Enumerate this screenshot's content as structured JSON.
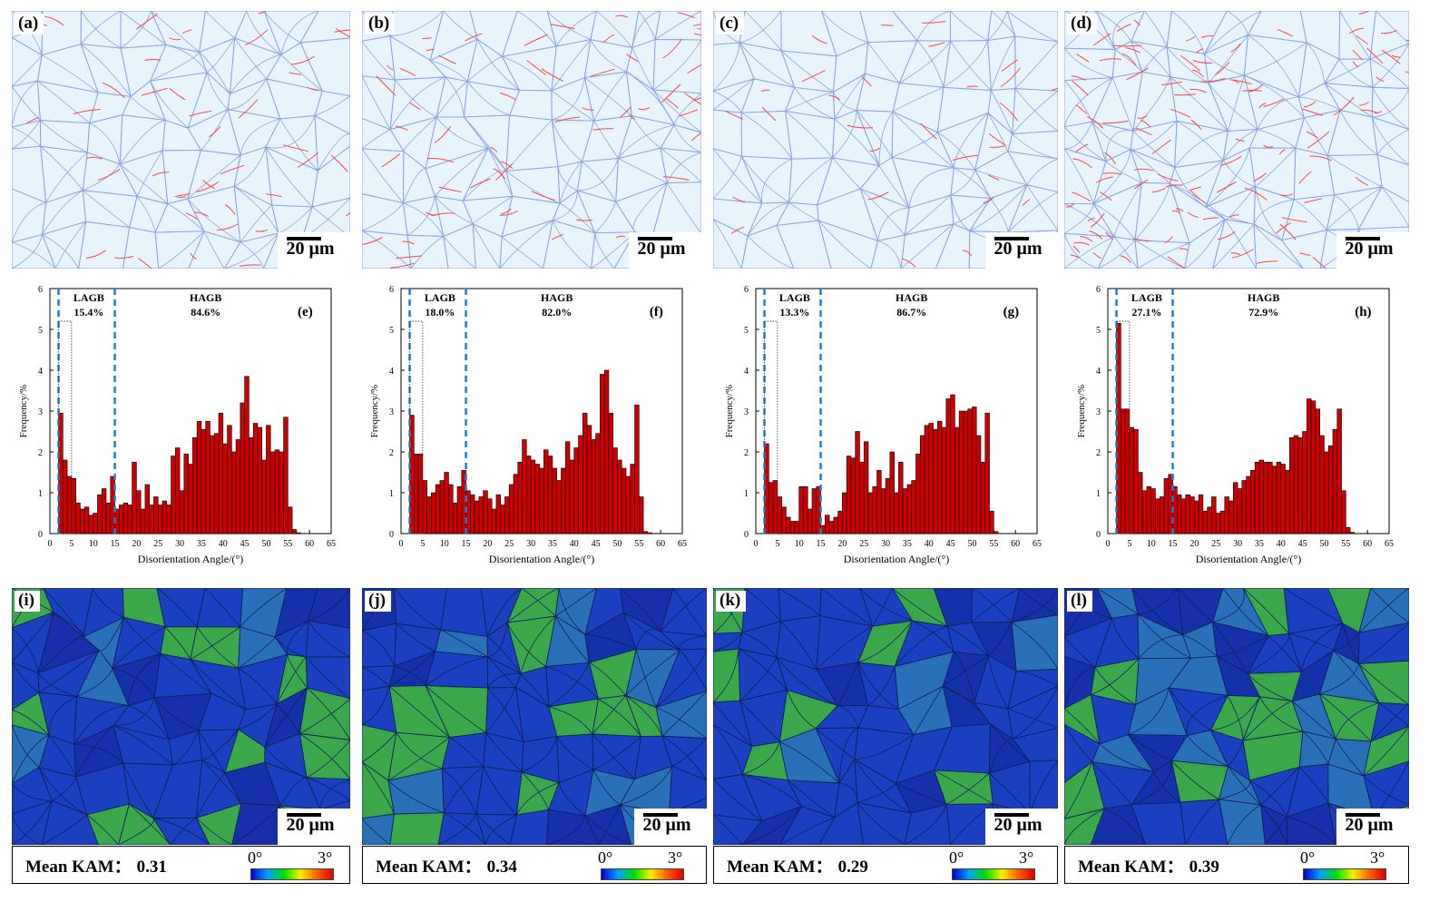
{
  "figure": {
    "scale_label": "20 μm",
    "gb_panels": [
      {
        "label": "(a)"
      },
      {
        "label": "(b)"
      },
      {
        "label": "(c)"
      },
      {
        "label": "(d)"
      }
    ],
    "kam_panels": [
      {
        "label": "(i)",
        "mean_kam_label": "Mean KAM：",
        "mean_kam": "0.31",
        "cbar_min": "0°",
        "cbar_max": "3°"
      },
      {
        "label": "(j)",
        "mean_kam_label": "Mean KAM：",
        "mean_kam": "0.34",
        "cbar_min": "0°",
        "cbar_max": "3°"
      },
      {
        "label": "(k)",
        "mean_kam_label": "Mean KAM：",
        "mean_kam": "0.29",
        "cbar_min": "0°",
        "cbar_max": "3°"
      },
      {
        "label": "(l)",
        "mean_kam_label": "Mean KAM：",
        "mean_kam": "0.39",
        "cbar_min": "0°",
        "cbar_max": "3°"
      }
    ],
    "colors": {
      "bar": "#cc0000",
      "boundary_line": "#1a7fd0",
      "hagb": "#8aa0e8",
      "lagb": "#ff4040"
    }
  },
  "chart_data": [
    {
      "type": "bar",
      "panel_label": "(e)",
      "xlabel": "Disorientation Angle/(°)",
      "ylabel": "Frequency/%",
      "xlim": [
        0,
        65
      ],
      "ylim": [
        0,
        6
      ],
      "x_ticks": [
        0,
        5,
        10,
        15,
        20,
        25,
        30,
        35,
        40,
        45,
        50,
        55,
        60,
        65
      ],
      "y_ticks": [
        0,
        1,
        2,
        3,
        4,
        5,
        6
      ],
      "lagb_label": "LAGB",
      "lagb_pct": "15.4%",
      "hagb_label": "HAGB",
      "hagb_pct": "84.6%",
      "bin_start": 2,
      "bin_width": 1,
      "values": [
        2.95,
        1.8,
        1.4,
        1.35,
        0.75,
        0.6,
        0.65,
        0.45,
        0.5,
        0.95,
        1.1,
        0.75,
        1.4,
        0.6,
        0.7,
        0.75,
        0.7,
        1.75,
        1.05,
        0.6,
        1.2,
        0.7,
        0.9,
        0.7,
        0.8,
        0.7,
        1.9,
        2.1,
        1.05,
        1.95,
        1.7,
        2.35,
        2.75,
        2.55,
        2.75,
        2.4,
        2.45,
        2.95,
        2.2,
        2.65,
        2.0,
        2.3,
        3.2,
        3.85,
        2.35,
        2.7,
        2.6,
        1.8,
        2.65,
        2.0,
        2.05,
        2.0,
        2.85,
        0.65,
        0.1,
        0.02
      ]
    },
    {
      "type": "bar",
      "panel_label": "(f)",
      "xlabel": "Disorientation Angle/(°)",
      "ylabel": "Frequency/%",
      "xlim": [
        0,
        65
      ],
      "ylim": [
        0,
        6
      ],
      "x_ticks": [
        0,
        5,
        10,
        15,
        20,
        25,
        30,
        35,
        40,
        45,
        50,
        55,
        60,
        65
      ],
      "y_ticks": [
        0,
        1,
        2,
        3,
        4,
        5,
        6
      ],
      "lagb_label": "LAGB",
      "lagb_pct": "18.0%",
      "hagb_label": "HAGB",
      "hagb_pct": "82.0%",
      "bin_start": 2,
      "bin_width": 1,
      "values": [
        2.9,
        1.95,
        1.95,
        1.3,
        0.9,
        1.0,
        1.2,
        1.3,
        1.5,
        1.2,
        0.75,
        1.15,
        1.55,
        1.05,
        0.95,
        0.8,
        0.9,
        1.05,
        0.85,
        0.6,
        0.95,
        0.7,
        0.9,
        1.2,
        1.45,
        1.75,
        2.3,
        1.9,
        1.8,
        1.7,
        1.6,
        2.05,
        1.9,
        1.6,
        1.3,
        1.6,
        2.25,
        1.8,
        2.1,
        2.4,
        2.95,
        2.65,
        2.3,
        2.45,
        3.9,
        4.0,
        2.95,
        2.1,
        1.8,
        1.6,
        1.4,
        1.7,
        3.15,
        0.9,
        0.05,
        0.02
      ]
    },
    {
      "type": "bar",
      "panel_label": "(g)",
      "xlabel": "Disorientation Angle/(°)",
      "ylabel": "Frequency/%",
      "xlim": [
        0,
        65
      ],
      "ylim": [
        0,
        6
      ],
      "x_ticks": [
        0,
        5,
        10,
        15,
        20,
        25,
        30,
        35,
        40,
        45,
        50,
        55,
        60,
        65
      ],
      "y_ticks": [
        0,
        1,
        2,
        3,
        4,
        5,
        6
      ],
      "lagb_label": "LAGB",
      "lagb_pct": "13.3%",
      "hagb_label": "HAGB",
      "hagb_pct": "86.7%",
      "bin_start": 2,
      "bin_width": 1,
      "values": [
        2.2,
        1.25,
        1.3,
        0.9,
        0.65,
        0.4,
        0.3,
        0.3,
        1.15,
        1.15,
        0.6,
        1.1,
        1.15,
        0.2,
        0.45,
        0.3,
        0.4,
        0.55,
        1.0,
        1.9,
        1.85,
        2.5,
        1.75,
        2.25,
        1.0,
        1.15,
        1.55,
        1.1,
        1.35,
        2.0,
        1.0,
        1.75,
        1.1,
        1.2,
        1.3,
        1.95,
        2.4,
        2.65,
        2.7,
        2.55,
        2.75,
        2.6,
        3.3,
        3.4,
        2.6,
        3.0,
        3.0,
        3.05,
        3.1,
        2.4,
        1.75,
        2.95,
        0.55,
        0.05
      ]
    },
    {
      "type": "bar",
      "panel_label": "(h)",
      "xlabel": "Disorientation Angle/(°)",
      "ylabel": "Frequency/%",
      "xlim": [
        0,
        65
      ],
      "ylim": [
        0,
        6
      ],
      "x_ticks": [
        0,
        5,
        10,
        15,
        20,
        25,
        30,
        35,
        40,
        45,
        50,
        55,
        60,
        65
      ],
      "y_ticks": [
        0,
        1,
        2,
        3,
        4,
        5,
        6
      ],
      "lagb_label": "LAGB",
      "lagb_pct": "27.1%",
      "hagb_label": "HAGB",
      "hagb_pct": "72.9%",
      "bin_start": 2,
      "bin_width": 1,
      "values": [
        5.15,
        3.05,
        3.05,
        2.6,
        2.55,
        1.5,
        1.05,
        1.15,
        1.1,
        0.85,
        0.9,
        1.35,
        1.45,
        1.15,
        0.95,
        0.85,
        0.95,
        0.9,
        0.8,
        0.95,
        0.55,
        0.65,
        0.9,
        0.5,
        0.55,
        0.9,
        0.8,
        1.25,
        1.1,
        1.3,
        1.4,
        1.55,
        1.75,
        1.8,
        1.75,
        1.75,
        1.65,
        1.75,
        1.7,
        1.55,
        2.35,
        2.4,
        2.35,
        2.5,
        3.3,
        3.25,
        3.05,
        2.4,
        2.0,
        2.15,
        2.55,
        3.05,
        1.05,
        0.15,
        0.03
      ]
    }
  ]
}
